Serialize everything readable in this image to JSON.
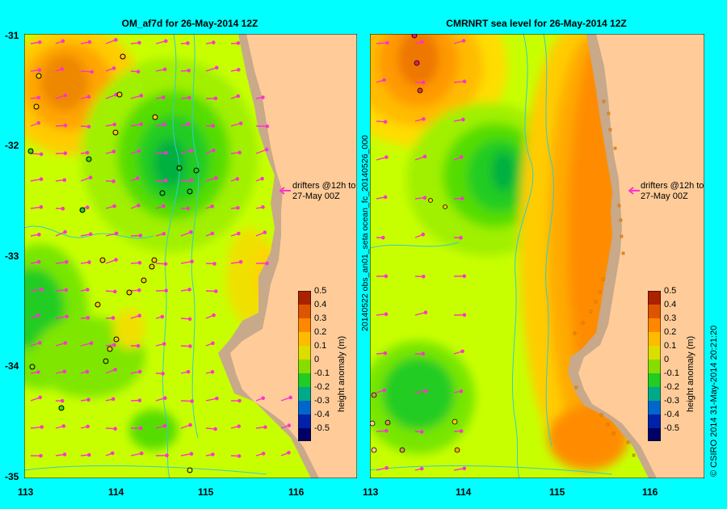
{
  "left_panel": {
    "title": "OM_af7d for 26-May-2014 12Z",
    "annotation": [
      "drifters @12h to",
      "27-May 00Z"
    ]
  },
  "right_panel": {
    "title": "CMRNRT sea level  for 26-May-2014 12Z",
    "annotation": [
      "drifters @12h to",
      "27-May 00Z"
    ],
    "side_label": "20140522 obs_an01_seta  ocean_fc_20140526_000"
  },
  "y_ticks": [
    "-31",
    "-32",
    "-33",
    "-34",
    "-35"
  ],
  "left_x_ticks": [
    "113",
    "114",
    "115",
    "116"
  ],
  "right_x_ticks": [
    "113",
    "114",
    "115",
    "116"
  ],
  "colorbar": {
    "label": "height anomaly (m)",
    "ticks": [
      "0.5",
      "0.4",
      "0.3",
      "0.2",
      "0.1",
      "0",
      "-0.1",
      "-0.2",
      "-0.3",
      "-0.4",
      "-0.5"
    ]
  },
  "credit": "© CSIRO 2014   31-May-2014 20:21:20",
  "colors": {
    "land": "#ffcc99",
    "shelf": "#c8a98a",
    "background": "#00ffff",
    "vectors": "#ff33cc"
  }
}
